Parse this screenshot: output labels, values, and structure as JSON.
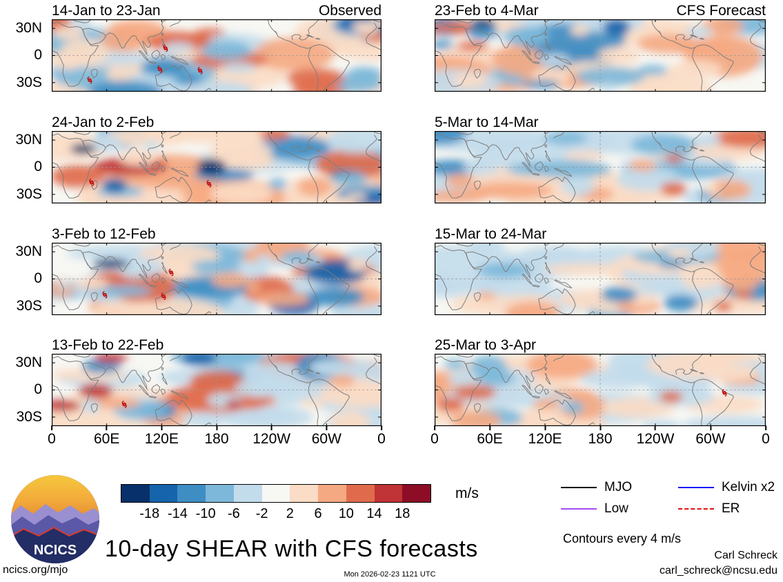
{
  "figure": {
    "main_title": "10-day SHEAR with CFS forecasts",
    "site": "ncics.org/mjo",
    "timestamp": "Mon 2026-02-23 1121 UTC",
    "credit_name": "Carl Schreck",
    "credit_email": "carl_schreck@ncsu.edu",
    "contour_note": "Contours every 4 m/s",
    "logo_text": "NCICS"
  },
  "columns": [
    {
      "header": "Observed",
      "panels": [
        {
          "title": "14-Jan to 23-Jan",
          "storms": [
            [
              0.345,
              0.4
            ],
            [
              0.328,
              0.69
            ],
            [
              0.45,
              0.71
            ],
            [
              0.115,
              0.84
            ]
          ]
        },
        {
          "title": "24-Jan to 2-Feb",
          "storms": [
            [
              0.121,
              0.71
            ],
            [
              0.477,
              0.73
            ]
          ]
        },
        {
          "title": "3-Feb to 12-Feb",
          "storms": [
            [
              0.362,
              0.41
            ],
            [
              0.161,
              0.72
            ],
            [
              0.339,
              0.74
            ]
          ]
        },
        {
          "title": "13-Feb to 22-Feb",
          "storms": [
            [
              0.22,
              0.7
            ]
          ]
        }
      ]
    },
    {
      "header": "CFS Forecast",
      "panels": [
        {
          "title": "23-Feb to 4-Mar",
          "storms": []
        },
        {
          "title": "5-Mar to 14-Mar",
          "storms": []
        },
        {
          "title": "15-Mar to 24-Mar",
          "storms": []
        },
        {
          "title": "25-Mar to 3-Apr",
          "storms": [
            [
              0.875,
              0.54
            ]
          ]
        }
      ]
    }
  ],
  "axes": {
    "x_ticks": [
      "0",
      "60E",
      "120E",
      "180",
      "120W",
      "60W",
      "0"
    ],
    "y_ticks": [
      "30N",
      "0",
      "30S"
    ]
  },
  "colorbar": {
    "unit": "m/s",
    "tick_labels": [
      "-18",
      "-14",
      "-10",
      "-6",
      "-2",
      "2",
      "6",
      "10",
      "14",
      "18"
    ],
    "colors": [
      "#08306b",
      "#1664ab",
      "#3e8ec4",
      "#7db8da",
      "#c3dcec",
      "#f7f7f4",
      "#fbdcc6",
      "#f5a982",
      "#e06b4c",
      "#c03336",
      "#8c0d25"
    ]
  },
  "legend": {
    "items": [
      {
        "label": "MJO",
        "color": "#000000",
        "dash": "solid"
      },
      {
        "label": "Kelvin x2",
        "color": "#1414ff",
        "dash": "solid"
      },
      {
        "label": "Low",
        "color": "#a24bf0",
        "dash": "solid"
      },
      {
        "label": "ER",
        "color": "#e01010",
        "dash": "dashed"
      }
    ]
  },
  "chart_data": {
    "type": "heatmap",
    "title": "10-day SHEAR with CFS forecasts",
    "subtitle": "Contours every 4 m/s",
    "description": "Eight tropical-belt world map panels (lon 0-360, lat ~40S-40N) of 10-day mean vertical wind shear anomalies shaded in m/s; left column is Observed, right column is CFS Forecast. Red tropical-cyclone symbols mark storm positions on observed panels.",
    "panel_grid": {
      "rows": 4,
      "cols": 2
    },
    "panels": [
      {
        "period": "14-Jan to 23-Jan",
        "source": "Observed"
      },
      {
        "period": "24-Jan to 2-Feb",
        "source": "Observed"
      },
      {
        "period": "3-Feb to 12-Feb",
        "source": "Observed"
      },
      {
        "period": "13-Feb to 22-Feb",
        "source": "Observed"
      },
      {
        "period": "23-Feb to 4-Mar",
        "source": "CFS Forecast"
      },
      {
        "period": "5-Mar to 14-Mar",
        "source": "CFS Forecast"
      },
      {
        "period": "15-Mar to 24-Mar",
        "source": "CFS Forecast"
      },
      {
        "period": "25-Mar to 3-Apr",
        "source": "CFS Forecast"
      }
    ],
    "x_axis": {
      "label": "longitude",
      "ticks": [
        "0",
        "60E",
        "120E",
        "180",
        "120W",
        "60W",
        "0"
      ],
      "range_deg": [
        0,
        360
      ]
    },
    "y_axis": {
      "label": "latitude",
      "ticks": [
        "30N",
        "0",
        "30S"
      ]
    },
    "shading_units": "m/s",
    "shading_levels": [
      -18,
      -14,
      -10,
      -6,
      -2,
      2,
      6,
      10,
      14,
      18
    ],
    "contour_interval_m_s": 4,
    "legend_lines": [
      "MJO",
      "Low",
      "Kelvin x2",
      "ER"
    ]
  }
}
